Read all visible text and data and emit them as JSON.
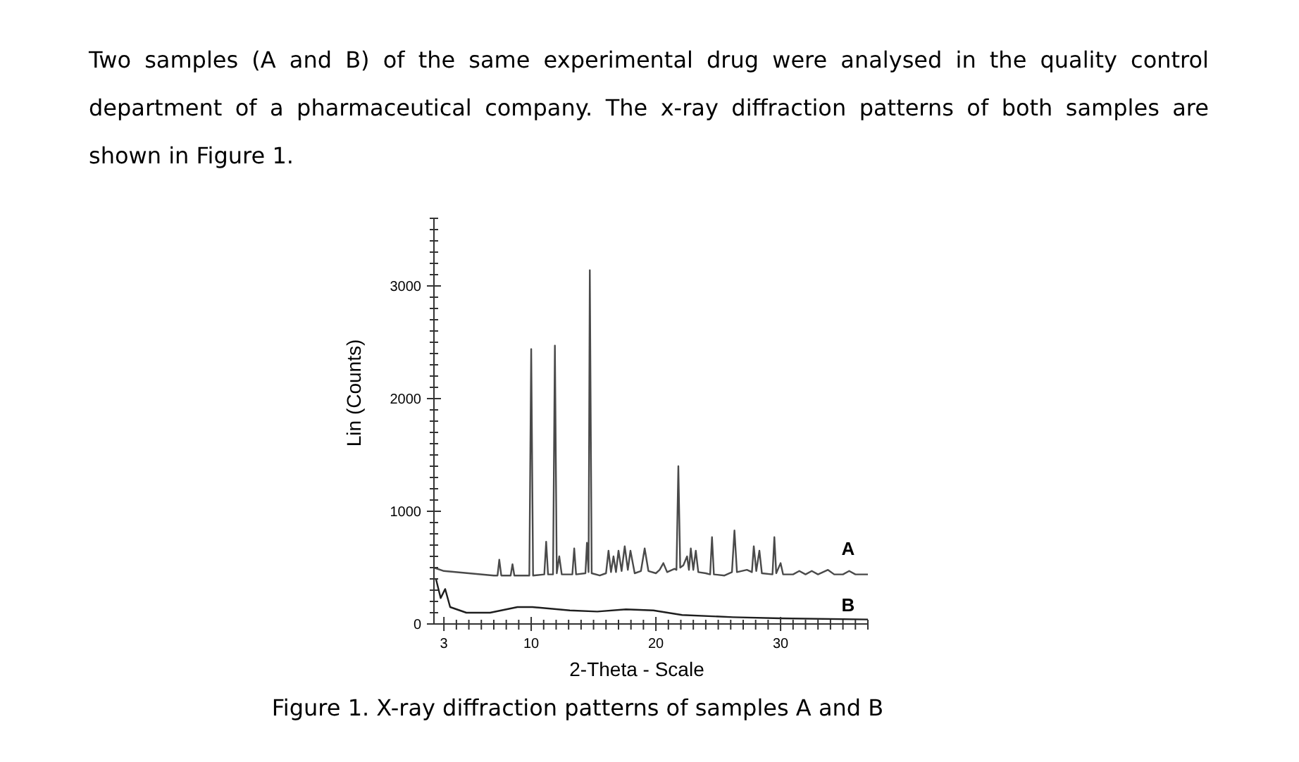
{
  "chart_data": {
    "type": "line",
    "title": "Two samples (A and B) of the same experimental drug were analysed in the quality control department of a pharmaceutical company. The x-ray diffraction patterns of both samples are shown in Figure 1.",
    "xlabel": "2-Theta - Scale",
    "ylabel": "Lin (Counts)",
    "annotations": [
      "Figure 1. X-ray diffraction patterns of samples A and B"
    ],
    "xlim": [
      2.2,
      37
    ],
    "ylim": [
      0,
      3600
    ],
    "xticks": [
      3,
      {
        "value": 4,
        "label": null
      },
      {
        "value": 5,
        "label": null
      },
      {
        "value": 6,
        "label": null
      },
      {
        "value": 7,
        "label": null
      },
      {
        "value": 8,
        "label": null
      },
      {
        "value": 9,
        "label": null
      },
      10,
      {
        "value": 11,
        "label": null
      },
      {
        "value": 12,
        "label": null
      },
      {
        "value": 13,
        "label": null
      },
      {
        "value": 14,
        "label": null
      },
      {
        "value": 15,
        "label": null
      },
      {
        "value": 16,
        "label": null
      },
      {
        "value": 17,
        "label": null
      },
      {
        "value": 18,
        "label": null
      },
      {
        "value": 19,
        "label": null
      },
      20,
      {
        "value": 21,
        "label": null
      },
      {
        "value": 22,
        "label": null
      },
      {
        "value": 23,
        "label": null
      },
      {
        "value": 24,
        "label": null
      },
      {
        "value": 25,
        "label": null
      },
      {
        "value": 26,
        "label": null
      },
      {
        "value": 27,
        "label": null
      },
      {
        "value": 28,
        "label": null
      },
      {
        "value": 29,
        "label": null
      },
      30,
      {
        "value": 31,
        "label": null
      },
      {
        "value": 32,
        "label": null
      },
      {
        "value": 33,
        "label": null
      },
      {
        "value": 34,
        "label": null
      },
      {
        "value": 35,
        "label": null
      },
      {
        "value": 36,
        "label": null
      },
      {
        "value": 37,
        "label": null
      }
    ],
    "yticks": [
      0,
      {
        "value": 100,
        "label": null
      },
      {
        "value": 200,
        "label": null
      },
      {
        "value": 300,
        "label": null
      },
      {
        "value": 400,
        "label": null
      },
      {
        "value": 500,
        "label": null
      },
      {
        "value": 600,
        "label": null
      },
      {
        "value": 700,
        "label": null
      },
      {
        "value": 800,
        "label": null
      },
      {
        "value": 900,
        "label": null
      },
      1000,
      {
        "value": 1100,
        "label": null
      },
      {
        "value": 1200,
        "label": null
      },
      {
        "value": 1300,
        "label": null
      },
      {
        "value": 1400,
        "label": null
      },
      {
        "value": 1500,
        "label": null
      },
      {
        "value": 1600,
        "label": null
      },
      {
        "value": 1700,
        "label": null
      },
      {
        "value": 1800,
        "label": null
      },
      {
        "value": 1900,
        "label": null
      },
      2000,
      {
        "value": 2100,
        "label": null
      },
      {
        "value": 2200,
        "label": null
      },
      {
        "value": 2300,
        "label": null
      },
      {
        "value": 2400,
        "label": null
      },
      {
        "value": 2500,
        "label": null
      },
      {
        "value": 2600,
        "label": null
      },
      {
        "value": 2700,
        "label": null
      },
      {
        "value": 2800,
        "label": null
      },
      {
        "value": 2900,
        "label": null
      },
      3000,
      {
        "value": 3100,
        "label": null
      },
      {
        "value": 3200,
        "label": null
      },
      {
        "value": 3300,
        "label": null
      },
      {
        "value": 3400,
        "label": null
      },
      {
        "value": 3500,
        "label": null
      },
      {
        "value": 3600,
        "label": null
      }
    ],
    "grid": false,
    "marker": "none",
    "line_style": "solid",
    "series": [
      {
        "name": "A",
        "color": "#4a4a4a",
        "x": [
          2.2,
          3,
          5,
          7,
          7.3,
          7.44,
          7.6,
          8.35,
          8.5,
          8.65,
          9.85,
          10.0,
          10.15,
          11.05,
          11.2,
          11.35,
          11.75,
          11.9,
          12.05,
          12.25,
          12.45,
          13.3,
          13.45,
          13.6,
          14.35,
          14.47,
          14.6,
          14.7,
          14.85,
          15.5,
          16.0,
          16.2,
          16.4,
          16.6,
          16.8,
          17.0,
          17.25,
          17.5,
          17.75,
          17.96,
          18.3,
          18.8,
          19.1,
          19.4,
          20.0,
          20.3,
          20.6,
          20.9,
          21.5,
          21.65,
          21.8,
          21.95,
          22.2,
          22.5,
          22.65,
          22.8,
          23.0,
          23.2,
          23.4,
          24.0,
          24.35,
          24.5,
          24.65,
          25.5,
          26.1,
          26.3,
          26.5,
          27.3,
          27.7,
          27.85,
          28.05,
          28.3,
          28.5,
          29.35,
          29.5,
          29.65,
          30.0,
          30.2,
          31.0,
          31.5,
          32.0,
          32.5,
          33.0,
          33.8,
          34.3,
          35.0,
          35.5,
          36.0,
          37
        ],
        "values": [
          500,
          470,
          450,
          430,
          430,
          570,
          430,
          430,
          530,
          430,
          430,
          2440,
          430,
          440,
          730,
          440,
          440,
          2470,
          450,
          600,
          440,
          440,
          670,
          440,
          450,
          720,
          460,
          3140,
          450,
          430,
          450,
          650,
          460,
          600,
          460,
          650,
          470,
          690,
          480,
          650,
          450,
          470,
          670,
          470,
          450,
          480,
          540,
          460,
          490,
          480,
          1400,
          500,
          520,
          600,
          480,
          670,
          480,
          650,
          460,
          450,
          440,
          770,
          440,
          430,
          460,
          830,
          460,
          480,
          460,
          690,
          470,
          650,
          450,
          440,
          770,
          450,
          540,
          440,
          440,
          470,
          440,
          470,
          440,
          480,
          440,
          440,
          470,
          440,
          440
        ]
      },
      {
        "name": "B",
        "color": "#1e1e1e",
        "x": [
          2.36,
          2.74,
          3.1,
          3.5,
          4.8,
          6.7,
          8.9,
          10.1,
          13.1,
          15.3,
          17.6,
          19.8,
          22.1,
          26.2,
          30,
          37
        ],
        "values": [
          400,
          230,
          310,
          150,
          100,
          100,
          150,
          150,
          120,
          110,
          130,
          120,
          80,
          60,
          50,
          40
        ]
      }
    ]
  }
}
